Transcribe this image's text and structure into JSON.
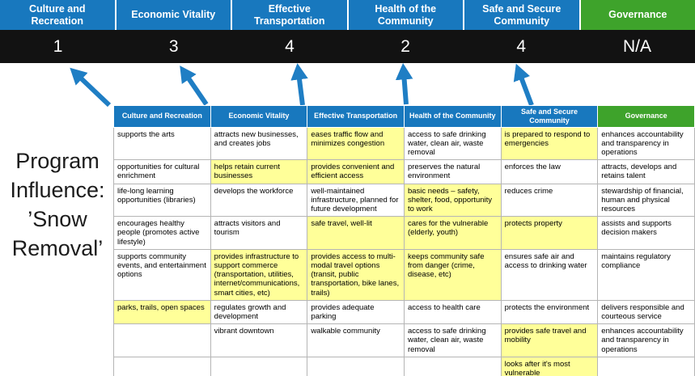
{
  "title": {
    "lines": [
      "Program",
      "Influence:",
      "’Snow",
      "Removal’"
    ]
  },
  "colors": {
    "pillar_blue": "#1878be",
    "governance_green": "#3ea32b",
    "highlight_yellow": "#ffff99",
    "score_band_bg": "#121212",
    "arrow_blue": "#1f7ec4",
    "cell_border": "#b5b5b5"
  },
  "pillars": [
    {
      "label": "Culture and Recreation",
      "score": "1",
      "color": "#1878be"
    },
    {
      "label": "Economic Vitality",
      "score": "3",
      "color": "#1878be"
    },
    {
      "label": "Effective Transportation",
      "score": "4",
      "color": "#1878be"
    },
    {
      "label": "Health of the Community",
      "score": "2",
      "color": "#1878be"
    },
    {
      "label": "Safe and Secure Community",
      "score": "4",
      "color": "#1878be"
    },
    {
      "label": "Governance",
      "score": "N/A",
      "color": "#3ea32b"
    }
  ],
  "matrix": {
    "headers": [
      {
        "label": "Culture and Recreation",
        "color": "#1878be"
      },
      {
        "label": "Economic Vitality",
        "color": "#1878be"
      },
      {
        "label": "Effective Transportation",
        "color": "#1878be"
      },
      {
        "label": "Health of the Community",
        "color": "#1878be"
      },
      {
        "label": "Safe and Secure Community",
        "color": "#1878be"
      },
      {
        "label": "Governance",
        "color": "#3ea32b"
      }
    ],
    "rows": [
      [
        {
          "text": "supports the arts",
          "hl": false
        },
        {
          "text": "attracts new businesses, and creates jobs",
          "hl": false
        },
        {
          "text": "eases traffic flow and minimizes congestion",
          "hl": true
        },
        {
          "text": "access to safe drinking water, clean air, waste removal",
          "hl": false
        },
        {
          "text": "is prepared to respond to emergencies",
          "hl": true
        },
        {
          "text": "enhances accountability and transparency in operations",
          "hl": false
        }
      ],
      [
        {
          "text": "opportunities for cultural enrichment",
          "hl": false
        },
        {
          "text": "helps retain current businesses",
          "hl": true
        },
        {
          "text": "provides convenient and efficient access",
          "hl": true
        },
        {
          "text": "preserves the natural environment",
          "hl": false
        },
        {
          "text": "enforces the law",
          "hl": false
        },
        {
          "text": "attracts, develops and retains talent",
          "hl": false
        }
      ],
      [
        {
          "text": "life-long learning opportunities (libraries)",
          "hl": false
        },
        {
          "text": "develops the workforce",
          "hl": false
        },
        {
          "text": "well-maintained infrastructure, planned for future development",
          "hl": false
        },
        {
          "text": "basic needs – safety, shelter, food, opportunity to work",
          "hl": true
        },
        {
          "text": "reduces crime",
          "hl": false
        },
        {
          "text": "stewardship of financial, human and physical resources",
          "hl": false
        }
      ],
      [
        {
          "text": "encourages healthy people (promotes active lifestyle)",
          "hl": false
        },
        {
          "text": "attracts visitors and tourism",
          "hl": false
        },
        {
          "text": "safe travel, well-lit",
          "hl": true
        },
        {
          "text": "cares for the vulnerable (elderly, youth)",
          "hl": true
        },
        {
          "text": "protects property",
          "hl": true
        },
        {
          "text": "assists and supports decision makers",
          "hl": false
        }
      ],
      [
        {
          "text": "supports community events, and entertainment options",
          "hl": false
        },
        {
          "text": "provides infrastructure to support commerce (transportation, utilities, internet/communications, smart cities, etc)",
          "hl": true
        },
        {
          "text": "provides access to multi-modal travel options (transit, public transportation, bike lanes, trails)",
          "hl": true
        },
        {
          "text": "keeps community safe from danger (crime, disease, etc)",
          "hl": true
        },
        {
          "text": "ensures safe air and access to drinking water",
          "hl": false
        },
        {
          "text": "maintains regulatory compliance",
          "hl": false
        }
      ],
      [
        {
          "text": "parks, trails, open spaces",
          "hl": true
        },
        {
          "text": "regulates growth and development",
          "hl": false
        },
        {
          "text": "provides adequate parking",
          "hl": false
        },
        {
          "text": "access to health care",
          "hl": false
        },
        {
          "text": "protects the environment",
          "hl": false
        },
        {
          "text": "delivers responsible and courteous service",
          "hl": false
        }
      ],
      [
        {
          "text": "",
          "hl": false
        },
        {
          "text": "vibrant downtown",
          "hl": false
        },
        {
          "text": "walkable community",
          "hl": false
        },
        {
          "text": "access to safe drinking water, clean air, waste removal",
          "hl": false
        },
        {
          "text": "provides safe travel and mobility",
          "hl": true
        },
        {
          "text": "enhances accountability and transparency in operations",
          "hl": false
        }
      ],
      [
        {
          "text": "",
          "hl": false
        },
        {
          "text": "",
          "hl": false
        },
        {
          "text": "",
          "hl": false
        },
        {
          "text": "",
          "hl": false
        },
        {
          "text": "looks after it's most vulnerable",
          "hl": true
        },
        {
          "text": "",
          "hl": false
        }
      ]
    ]
  }
}
